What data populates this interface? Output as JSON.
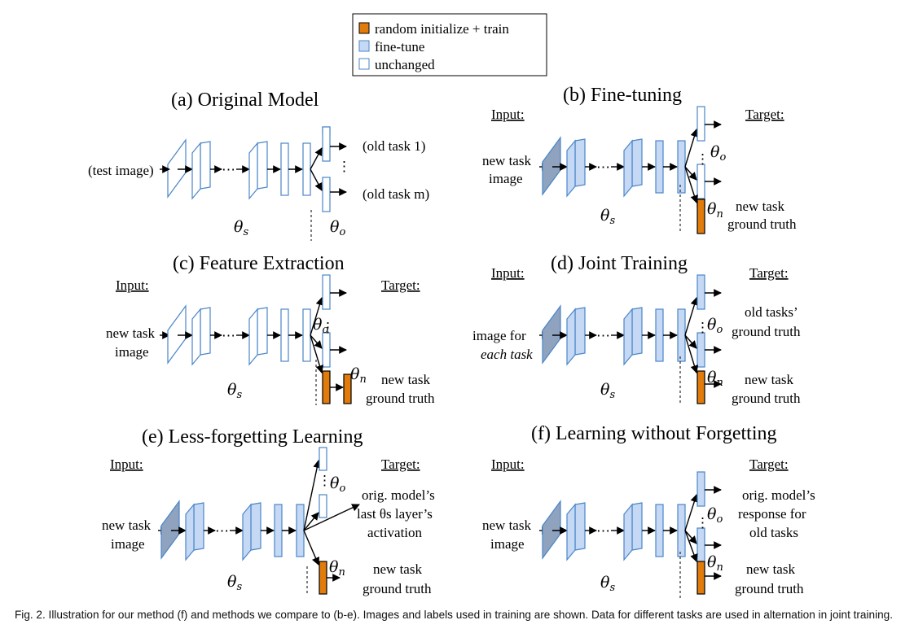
{
  "legend": {
    "items": [
      {
        "label": "random initialize + train",
        "kind": "train",
        "color": "#e07b0c"
      },
      {
        "label": "fine-tune",
        "kind": "finetune",
        "color": "#c5d9f5"
      },
      {
        "label": "unchanged",
        "kind": "unchanged",
        "color": "#ffffff"
      }
    ],
    "stroke_color": "#4a86c8"
  },
  "panels": {
    "a": {
      "title": "(a) Original Model",
      "input": "(test image)",
      "outputs": [
        "(old task 1)",
        "(old task m)"
      ]
    },
    "b": {
      "title": "(b) Fine-tuning",
      "input_header": "Input:",
      "target_header": "Target:",
      "input_lines": [
        "new task",
        "image"
      ],
      "target_lines": [
        "new task",
        "ground truth"
      ]
    },
    "c": {
      "title": "(c) Feature Extraction",
      "input_header": "Input:",
      "target_header": "Target:",
      "input_lines": [
        "new task",
        "image"
      ],
      "target_lines": [
        "new task",
        "ground truth"
      ]
    },
    "d": {
      "title": "(d) Joint Training",
      "input_header": "Input:",
      "target_header": "Target:",
      "input_lines": [
        "image for",
        "each task"
      ],
      "target_old_lines": [
        "old tasks’",
        "ground truth"
      ],
      "target_new_lines": [
        "new task",
        "ground truth"
      ]
    },
    "e": {
      "title": "(e) Less-forgetting Learning",
      "input_header": "Input:",
      "target_header": "Target:",
      "input_lines": [
        "new task",
        "image"
      ],
      "target_old_lines": [
        "orig. model’s",
        "last θs layer’s",
        "activation"
      ],
      "target_new_lines": [
        "new task",
        "ground truth"
      ]
    },
    "f": {
      "title": "(f) Learning without Forgetting",
      "input_header": "Input:",
      "target_header": "Target:",
      "input_lines": [
        "new task",
        "image"
      ],
      "target_old_lines": [
        "orig. model’s",
        "response for",
        "old tasks"
      ],
      "target_new_lines": [
        "new task",
        "ground truth"
      ]
    }
  },
  "symbols": {
    "theta": "θ",
    "shared_sub": "s",
    "old_sub": "o",
    "new_sub": "n",
    "ellipsis": "⋯",
    "vdots": "⋮"
  },
  "caption": {
    "text": "Fig. 2. Illustration for our method (f) and methods we compare to (b-e). Images and labels used in training are shown. Data for different tasks are used in alternation in joint training."
  }
}
